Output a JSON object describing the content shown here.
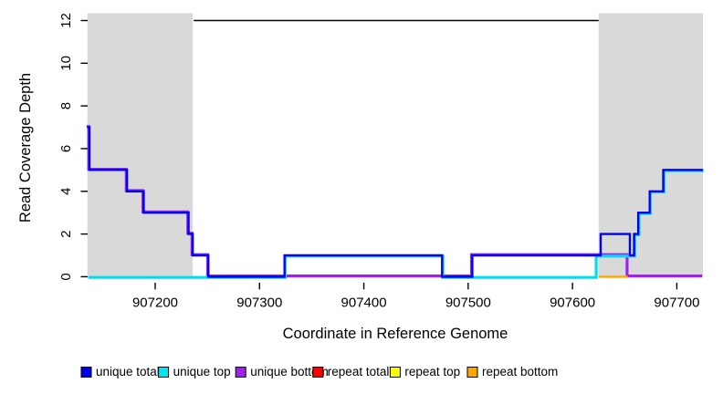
{
  "chart_data": {
    "type": "line",
    "subtype": "step-coverage",
    "title": "",
    "xlabel": "Coordinate in Reference Genome",
    "ylabel": "Read Coverage Depth",
    "xlim": [
      907135,
      907725
    ],
    "ylim": [
      0,
      12.35
    ],
    "x_ticks": [
      907200,
      907300,
      907400,
      907500,
      907600,
      907700
    ],
    "y_ticks": [
      0,
      2,
      4,
      6,
      8,
      10,
      12
    ],
    "grid": "off",
    "background": "#FFFFFF",
    "shade_color": "#D9D9D9",
    "axis_color": "#000000",
    "repeat_regions": [
      [
        907135,
        907236
      ],
      [
        907625,
        907725
      ]
    ],
    "top_line": {
      "y": 12,
      "x_start": 907237,
      "x_end": 907625,
      "color": "#000000"
    },
    "series": [
      {
        "name": "unique total",
        "color": "#0000EE",
        "steps": [
          [
            907135,
            7
          ],
          [
            907137,
            5
          ],
          [
            907173,
            4
          ],
          [
            907189,
            3
          ],
          [
            907232,
            2
          ],
          [
            907236,
            1
          ],
          [
            907251,
            0
          ],
          [
            907324,
            1
          ],
          [
            907475,
            0
          ],
          [
            907504,
            1
          ],
          [
            907627,
            2
          ],
          [
            907655,
            1
          ],
          [
            907659,
            2
          ],
          [
            907663,
            3
          ],
          [
            907674,
            4
          ],
          [
            907687,
            5
          ],
          [
            907725,
            5
          ]
        ]
      },
      {
        "name": "unique top",
        "color": "#00DDEE",
        "steps": [
          [
            907135,
            0
          ],
          [
            907324,
            1
          ],
          [
            907475,
            0
          ],
          [
            907622,
            1
          ],
          [
            907659,
            2
          ],
          [
            907663,
            3
          ],
          [
            907674,
            4
          ],
          [
            907687,
            5
          ],
          [
            907725,
            5
          ]
        ]
      },
      {
        "name": "unique bottom",
        "color": "#A020F0",
        "steps": [
          [
            907135,
            7
          ],
          [
            907137,
            5
          ],
          [
            907173,
            4
          ],
          [
            907189,
            3
          ],
          [
            907232,
            2
          ],
          [
            907236,
            1
          ],
          [
            907251,
            0
          ],
          [
            907504,
            1
          ],
          [
            907653,
            0
          ],
          [
            907725,
            0
          ]
        ]
      },
      {
        "name": "repeat total",
        "color": "#FF0000",
        "steps": []
      },
      {
        "name": "repeat top",
        "color": "#FFFF00",
        "steps": []
      },
      {
        "name": "repeat bottom",
        "color": "#FFA500",
        "steps": [
          [
            907625,
            0
          ],
          [
            907653,
            0
          ]
        ]
      }
    ],
    "legend": {
      "position": "bottom",
      "items": [
        {
          "label": "unique total",
          "color": "#0000EE"
        },
        {
          "label": "unique top",
          "color": "#00E5EE"
        },
        {
          "label": "unique bottom",
          "color": "#A020F0"
        },
        {
          "label": "repeat total",
          "color": "#FF0000"
        },
        {
          "label": "repeat top",
          "color": "#FFFF00"
        },
        {
          "label": "repeat bottom",
          "color": "#FFA500"
        }
      ]
    }
  }
}
